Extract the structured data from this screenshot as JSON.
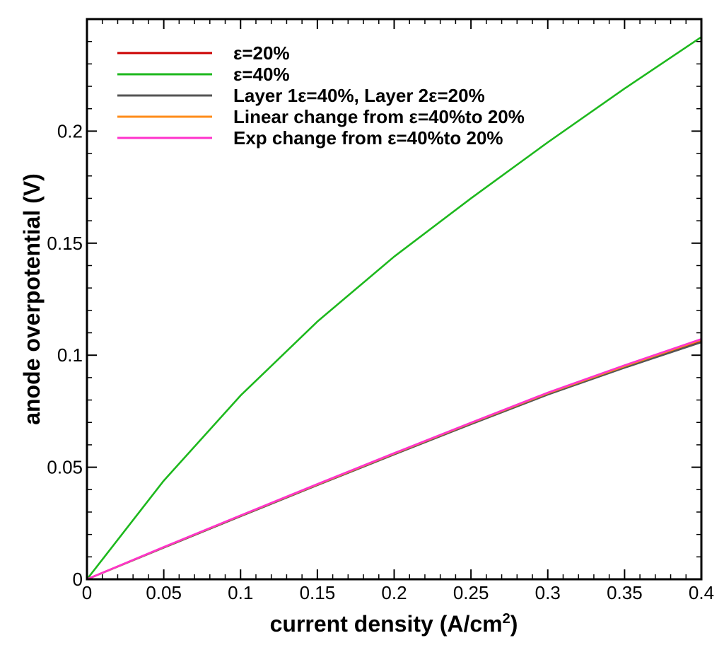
{
  "chart_data": {
    "type": "line",
    "xlabel": "current density (A/cm",
    "xlabel_superscript": "2",
    "xlabel_suffix": ")",
    "ylabel": "anode overpotential (V)",
    "xlim": [
      0,
      0.4
    ],
    "ylim": [
      0,
      0.25
    ],
    "x_ticks": [
      0,
      0.05,
      0.1,
      0.15,
      0.2,
      0.25,
      0.3,
      0.35,
      0.4
    ],
    "x_tick_labels": [
      "0",
      "0.05",
      "0.1",
      "0.15",
      "0.2",
      "0.25",
      "0.3",
      "0.35",
      "0.4"
    ],
    "y_ticks": [
      0,
      0.05,
      0.1,
      0.15,
      0.2
    ],
    "y_tick_labels": [
      "0",
      "0.05",
      "0.1",
      "0.15",
      "0.2"
    ],
    "grid": false,
    "legend_position": "top-left",
    "series": [
      {
        "name": "ε=20%",
        "color": "#cc0000",
        "x": [
          0,
          0.05,
          0.1,
          0.15,
          0.2,
          0.25,
          0.3,
          0.35,
          0.4
        ],
        "y": [
          0,
          0.0142,
          0.0282,
          0.0421,
          0.0558,
          0.0694,
          0.0826,
          0.0946,
          0.1062
        ]
      },
      {
        "name": "ε=40%",
        "color": "#1db81d",
        "x": [
          0,
          0.05,
          0.1,
          0.15,
          0.2,
          0.25,
          0.3,
          0.35,
          0.4
        ],
        "y": [
          0,
          0.044,
          0.082,
          0.115,
          0.144,
          0.17,
          0.195,
          0.219,
          0.242
        ]
      },
      {
        "name": "Layer 1ε=40%, Layer 2ε=20%",
        "color": "#555555",
        "x": [
          0,
          0.05,
          0.1,
          0.15,
          0.2,
          0.25,
          0.3,
          0.35,
          0.4
        ],
        "y": [
          0,
          0.0141,
          0.0281,
          0.042,
          0.0557,
          0.0692,
          0.0824,
          0.0944,
          0.1058
        ]
      },
      {
        "name": "Linear change from ε=40%to 20%",
        "color": "#ff8c1a",
        "x": [
          0,
          0.05,
          0.1,
          0.15,
          0.2,
          0.25,
          0.3,
          0.35,
          0.4
        ],
        "y": [
          0,
          0.0143,
          0.0284,
          0.0423,
          0.0561,
          0.0697,
          0.083,
          0.0951,
          0.1068
        ]
      },
      {
        "name": "Exp change from ε=40%to 20%",
        "color": "#ff33cc",
        "x": [
          0,
          0.05,
          0.1,
          0.15,
          0.2,
          0.25,
          0.3,
          0.35,
          0.4
        ],
        "y": [
          0,
          0.0144,
          0.0285,
          0.0425,
          0.0563,
          0.0699,
          0.0833,
          0.0955,
          0.1072
        ]
      }
    ]
  }
}
